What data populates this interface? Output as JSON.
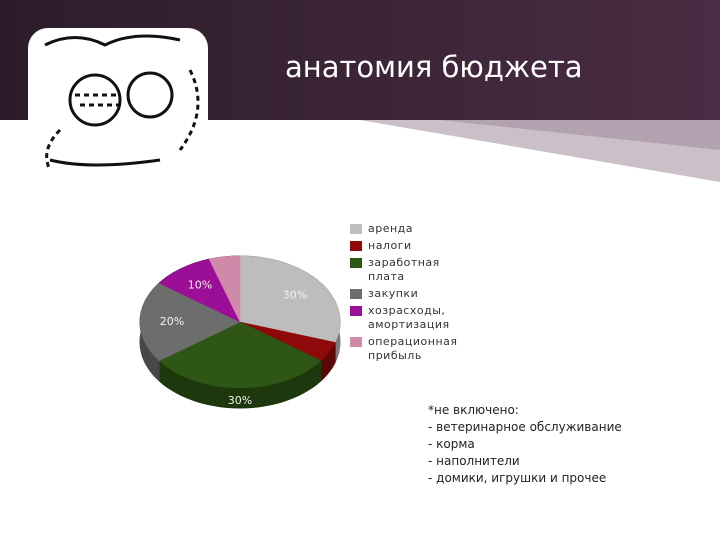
{
  "chart_data": {
    "type": "pie",
    "title": "анатомия бюджета",
    "categories": [
      "аренда",
      "налоги",
      "заработная плата",
      "закупки",
      "хозрасходы, амортизация",
      "операционная прибыль"
    ],
    "values": [
      30,
      5,
      30,
      20,
      10,
      5
    ],
    "value_labels": [
      "30%",
      null,
      "30%",
      "20%",
      "10%",
      null
    ],
    "colors": [
      "#bdbdbd",
      "#8e0a0a",
      "#2e5614",
      "#6d6d6d",
      "#9a0f96",
      "#cf8aa9"
    ],
    "legend": "right"
  },
  "note": {
    "title": "*не включено:",
    "items": [
      "- ветеринарное обслуживание",
      "- корма",
      "- наполнители",
      "- домики, игрушки и прочее"
    ]
  }
}
